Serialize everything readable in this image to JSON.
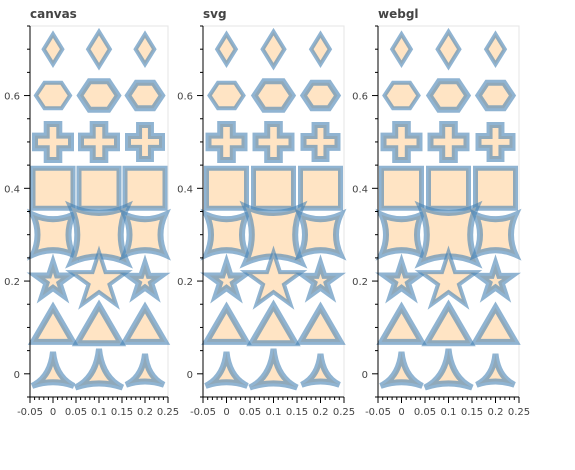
{
  "chart_data": {
    "type": "scatter",
    "marker_style": {
      "fill_color": "#ffe4c4",
      "line_color": "#4682b4",
      "line_alpha": 0.6
    },
    "panels": [
      {
        "title": "canvas",
        "x_ticks": [
          "-0.05",
          "0",
          "0.05",
          "0.1",
          "0.15",
          "0.2",
          "0.25"
        ],
        "y_ticks": [
          "0",
          "0.2",
          "0.4",
          "0.6"
        ],
        "xlim": [
          -0.05,
          0.25
        ],
        "ylim": [
          -0.05,
          0.75
        ]
      },
      {
        "title": "svg",
        "x_ticks": [
          "-0.05",
          "0",
          "0.05",
          "0.1",
          "0.15",
          "0.2",
          "0.25"
        ],
        "y_ticks": [
          "0",
          "0.2",
          "0.4",
          "0.6"
        ],
        "xlim": [
          -0.05,
          0.25
        ],
        "ylim": [
          -0.05,
          0.75
        ]
      },
      {
        "title": "webgl",
        "x_ticks": [
          "-0.05",
          "0",
          "0.05",
          "0.1",
          "0.15",
          "0.2",
          "0.25"
        ],
        "y_ticks": [
          "0",
          "0.2",
          "0.4",
          "0.6"
        ],
        "xlim": [
          -0.05,
          0.25
        ],
        "ylim": [
          -0.05,
          0.75
        ]
      }
    ],
    "marker_rows": [
      {
        "y": 0.7,
        "marker": "diamond",
        "x": [
          0,
          0.1,
          0.2
        ],
        "size": [
          30,
          35,
          30
        ],
        "line_width": [
          4,
          4,
          4
        ]
      },
      {
        "y": 0.6,
        "marker": "hex",
        "x": [
          0,
          0.1,
          0.2
        ],
        "size": [
          34,
          38,
          34
        ],
        "line_width": [
          4,
          6,
          6
        ]
      },
      {
        "y": 0.5,
        "marker": "plus",
        "x": [
          0,
          0.1,
          0.2
        ],
        "size": [
          36,
          36,
          34
        ],
        "line_width": [
          6,
          6,
          6
        ]
      },
      {
        "y": 0.4,
        "marker": "square",
        "x": [
          0,
          0.1,
          0.2
        ],
        "size": [
          40,
          40,
          40
        ],
        "line_width": [
          5,
          5,
          5
        ]
      },
      {
        "y": 0.3,
        "marker": "square_pin",
        "x": [
          0,
          0.1,
          0.2
        ],
        "size": [
          40,
          56,
          40
        ],
        "line_width": [
          6,
          6,
          6
        ]
      },
      {
        "y": 0.2,
        "marker": "star",
        "x": [
          0,
          0.1,
          0.2
        ],
        "size": [
          36,
          58,
          34
        ],
        "line_width": [
          6,
          4,
          6
        ]
      },
      {
        "y": 0.1,
        "marker": "triangle",
        "x": [
          0,
          0.1,
          0.2
        ],
        "size": [
          40,
          44,
          40
        ],
        "line_width": [
          6,
          6,
          6
        ]
      },
      {
        "y": 0.0,
        "marker": "triangle_pin",
        "x": [
          0,
          0.1,
          0.2
        ],
        "size": [
          44,
          50,
          40
        ],
        "line_width": [
          6,
          6,
          6
        ]
      }
    ]
  }
}
